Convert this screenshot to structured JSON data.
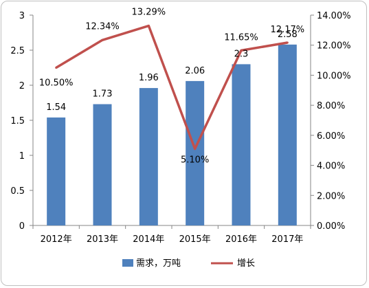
{
  "chart_data": {
    "type": "bar+line",
    "categories": [
      "2012年",
      "2013年",
      "2014年",
      "2015年",
      "2016年",
      "2017年"
    ],
    "series": [
      {
        "name": "需求，万吨",
        "type": "bar",
        "axis": "left",
        "color": "#4f81bd",
        "values": [
          1.54,
          1.73,
          1.96,
          2.06,
          2.3,
          2.58
        ],
        "labels": [
          "1.54",
          "1.73",
          "1.96",
          "2.06",
          "2.3",
          "2.58"
        ]
      },
      {
        "name": "增长",
        "type": "line",
        "axis": "right",
        "color": "#c0504d",
        "values": [
          10.5,
          12.34,
          13.29,
          5.1,
          11.65,
          12.17
        ],
        "labels": [
          "10.50%",
          "12.34%",
          "13.29%",
          "5.10%",
          "11.65%",
          "12.17%"
        ]
      }
    ],
    "y_left": {
      "min": 0,
      "max": 3,
      "ticks": [
        "0",
        "0.5",
        "1",
        "1.5",
        "2",
        "2.5",
        "3"
      ]
    },
    "y_right": {
      "min": 0,
      "max": 14,
      "ticks": [
        "0.00%",
        "2.00%",
        "4.00%",
        "6.00%",
        "8.00%",
        "10.00%",
        "12.00%",
        "14.00%"
      ]
    },
    "grid": false,
    "legend_position": "bottom"
  }
}
